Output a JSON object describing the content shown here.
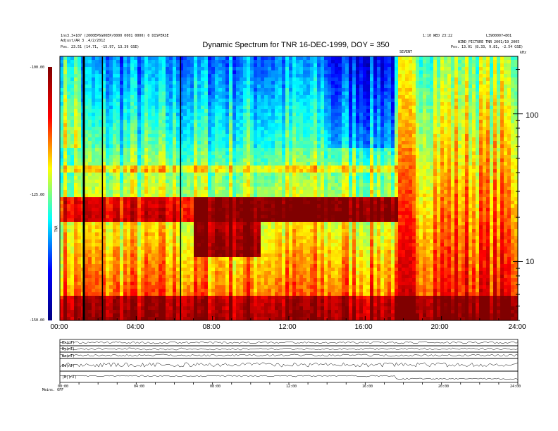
{
  "header": {
    "left_line1": "1ns3.3+107 (2000EP6G00EP/0000 0001 0000) 0 DISPERSE",
    "left_line2": "Adjust/AR 3 .4/2/2012",
    "left_line3": "Pos. 23.51 (14.71, -15.97, 13.39 GSE)",
    "right_line1": "1:10 WED 23:22",
    "right_line1b": "L3900007+801",
    "right_line2": "WIND_PICTURE TNR 2001/19_2005",
    "right_line3": "Pos. 13.01 (8.33, 9.81, -2.54 GSE)",
    "event_label": "SEVENT",
    "khz_label": "kHz"
  },
  "chart_data": {
    "type": "heatmap",
    "title": "Dynamic Spectrum for TNR 16-DEC-1999, DOY = 350",
    "x_ticks": [
      "00:00",
      "04:00",
      "08:00",
      "12:00",
      "16:00",
      "20:00",
      "24:00"
    ],
    "xlim_hours": [
      0,
      24
    ],
    "y_ticks_right": [
      "100",
      "10"
    ],
    "ylim_khz_log": [
      4,
      245
    ],
    "colorbar": {
      "label": "TNR",
      "ticks": [
        "-100.00",
        "-125.00",
        "-150.00"
      ],
      "range_db": [
        -150,
        -100
      ],
      "colors": [
        "#000080",
        "#0000ff",
        "#00ffff",
        "#ffff00",
        "#ff0000",
        "#800000"
      ]
    },
    "sub_panels": {
      "labels": [
        "Bx(nT)",
        "By(nT)",
        "Bz(nT)",
        "Bt(nT)",
        "|B|(nT)"
      ],
      "x_ticks": [
        "00:00",
        "04:00",
        "08:00",
        "12:00",
        "16:00",
        "20:00",
        "24:00"
      ],
      "bottom_label": "Meins. OFF"
    }
  }
}
